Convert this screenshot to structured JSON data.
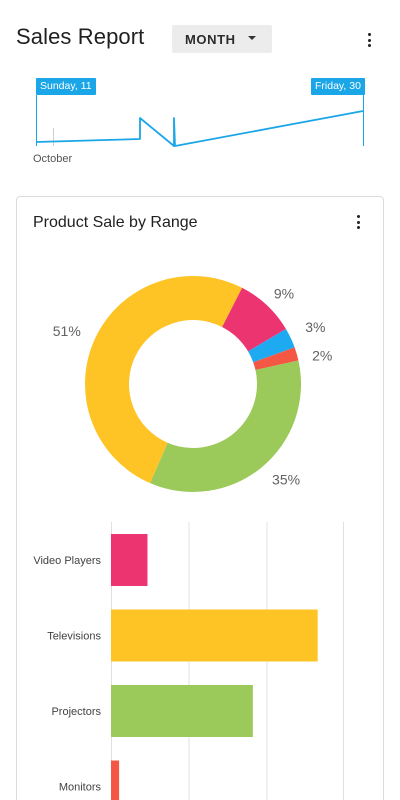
{
  "header": {
    "title": "Sales Report",
    "period_dropdown": {
      "selected": "MONTH",
      "icon": "caret-down-icon"
    },
    "menu_icon": "more-vert-icon"
  },
  "timeline": {
    "start_label": "Sunday, 11",
    "end_label": "Friday, 30",
    "month_label": "October",
    "accent_color": "#1ba6e8"
  },
  "card": {
    "title": "Product Sale by Range",
    "menu_icon": "more-vert-icon"
  },
  "chart_data": [
    {
      "type": "pie",
      "style": "donut",
      "slices": [
        {
          "value": 9,
          "label": "9%",
          "color": "#ec3470"
        },
        {
          "value": 3,
          "label": "3%",
          "color": "#1eaaf1"
        },
        {
          "value": 2,
          "label": "2%",
          "color": "#f45844"
        },
        {
          "value": 35,
          "label": "35%",
          "color": "#9bc95a"
        },
        {
          "value": 51,
          "label": "51%",
          "color": "#fec425"
        }
      ]
    },
    {
      "type": "bar",
      "orientation": "horizontal",
      "categories": [
        "Video Players",
        "Televisions",
        "Projectors",
        "Monitors"
      ],
      "values": [
        9,
        51,
        35,
        2
      ],
      "colors": [
        "#ec3470",
        "#fec425",
        "#9bc95a",
        "#f45844"
      ],
      "xlim": [
        0,
        57
      ],
      "grid": true
    }
  ]
}
